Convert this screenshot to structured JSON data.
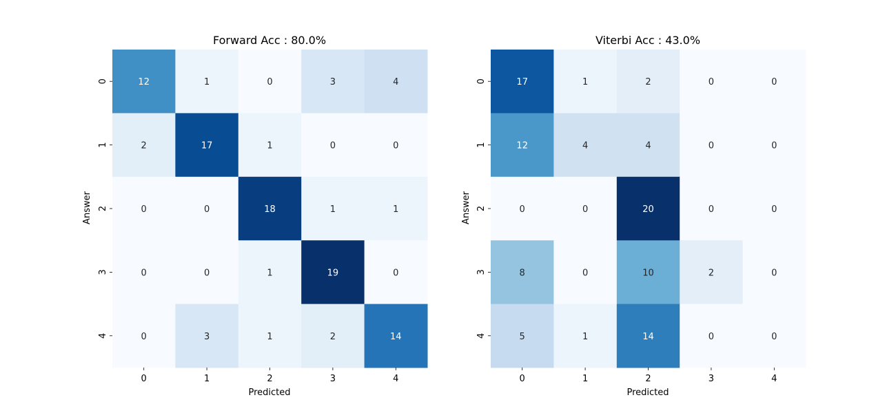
{
  "chart_data": [
    {
      "type": "heatmap",
      "title": "Forward Acc : 80.0%",
      "xlabel": "Predicted",
      "ylabel": "Answer",
      "x_categories": [
        "0",
        "1",
        "2",
        "3",
        "4"
      ],
      "y_categories": [
        "0",
        "1",
        "2",
        "3",
        "4"
      ],
      "colormap": "Blues",
      "vmin": 0,
      "vmax": 19,
      "matrix": [
        [
          12,
          1,
          0,
          3,
          4
        ],
        [
          2,
          17,
          1,
          0,
          0
        ],
        [
          0,
          0,
          18,
          1,
          1
        ],
        [
          0,
          0,
          1,
          19,
          0
        ],
        [
          0,
          3,
          1,
          2,
          14
        ]
      ]
    },
    {
      "type": "heatmap",
      "title": "Viterbi Acc : 43.0%",
      "xlabel": "Predicted",
      "ylabel": "Answer",
      "x_categories": [
        "0",
        "1",
        "2",
        "3",
        "4"
      ],
      "y_categories": [
        "0",
        "1",
        "2",
        "3",
        "4"
      ],
      "colormap": "Blues",
      "vmin": 0,
      "vmax": 20,
      "matrix": [
        [
          17,
          1,
          2,
          0,
          0
        ],
        [
          12,
          4,
          4,
          0,
          0
        ],
        [
          0,
          0,
          20,
          0,
          0
        ],
        [
          8,
          0,
          10,
          2,
          0
        ],
        [
          5,
          1,
          14,
          0,
          0
        ]
      ]
    }
  ]
}
